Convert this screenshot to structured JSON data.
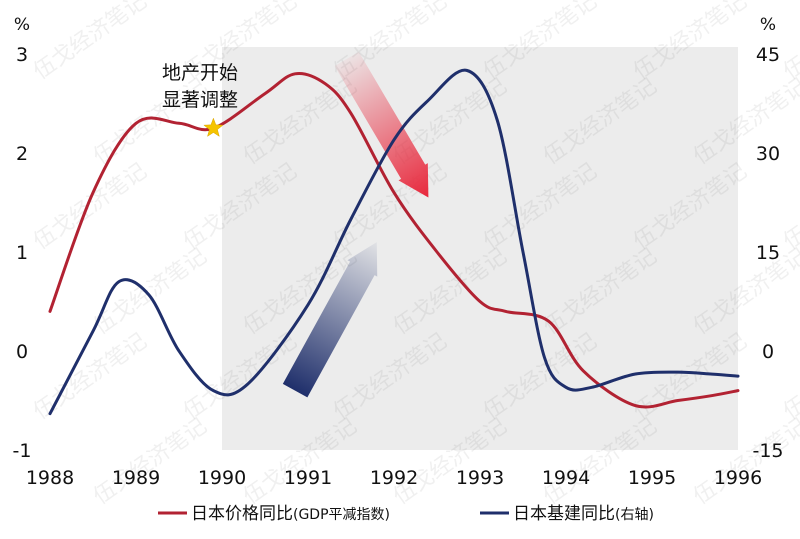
{
  "chart_data": {
    "type": "line",
    "title": "",
    "x_categories": [
      "1988",
      "1989",
      "1990",
      "1991",
      "1992",
      "1993",
      "1994",
      "1995",
      "1996"
    ],
    "left_axis": {
      "unit": "%",
      "ylim": [
        -1,
        3
      ],
      "ticks": [
        "3",
        "2",
        "1",
        "0",
        "-1"
      ],
      "tick_values": [
        3,
        2,
        1,
        0,
        -1
      ]
    },
    "right_axis": {
      "unit": "%",
      "ylim": [
        -15,
        45
      ],
      "ticks": [
        "45",
        "30",
        "15",
        "0",
        "-15"
      ],
      "tick_values": [
        45,
        30,
        15,
        0,
        -15
      ]
    },
    "shaded_region": {
      "x_start": 1990,
      "x_end": 1996
    },
    "annotation": {
      "line1": "地产开始",
      "line2": "显著调整",
      "x": 1989.9,
      "y": 2.25,
      "marker": "star-icon",
      "marker_color": "#f5c400"
    },
    "series": [
      {
        "name": "日本价格同比",
        "legend_note": "(GDP平减指数)",
        "axis": "left",
        "color": "#b22232",
        "points": [
          [
            1988,
            0.4
          ],
          [
            1988.5,
            1.6
          ],
          [
            1989,
            2.3
          ],
          [
            1989.5,
            2.3
          ],
          [
            1989.9,
            2.25
          ],
          [
            1990.5,
            2.6
          ],
          [
            1990.85,
            2.8
          ],
          [
            1991.2,
            2.7
          ],
          [
            1991.5,
            2.4
          ],
          [
            1992,
            1.6
          ],
          [
            1992.5,
            1.0
          ],
          [
            1993,
            0.5
          ],
          [
            1993.3,
            0.4
          ],
          [
            1993.8,
            0.3
          ],
          [
            1994.2,
            -0.2
          ],
          [
            1994.8,
            -0.55
          ],
          [
            1995.3,
            -0.5
          ],
          [
            1995.7,
            -0.45
          ],
          [
            1996,
            -0.4
          ]
        ]
      },
      {
        "name": "日本基建同比",
        "legend_note": "(右轴)",
        "axis": "right",
        "color": "#1f2f6b",
        "points": [
          [
            1988,
            -9.5
          ],
          [
            1988.5,
            3
          ],
          [
            1988.8,
            10.5
          ],
          [
            1989.15,
            8.5
          ],
          [
            1989.5,
            0
          ],
          [
            1989.9,
            -6
          ],
          [
            1990.3,
            -5
          ],
          [
            1991,
            7
          ],
          [
            1991.5,
            20
          ],
          [
            1992,
            32
          ],
          [
            1992.4,
            38
          ],
          [
            1992.85,
            42.5
          ],
          [
            1993.2,
            35
          ],
          [
            1993.5,
            15
          ],
          [
            1993.75,
            -1
          ],
          [
            1994,
            -5.5
          ],
          [
            1994.3,
            -5.5
          ],
          [
            1994.8,
            -3.5
          ],
          [
            1995.3,
            -3.2
          ],
          [
            1995.7,
            -3.5
          ],
          [
            1996,
            -3.8
          ]
        ]
      }
    ],
    "arrows": [
      {
        "color": "#e8283c",
        "from": [
          1991.45,
          2.95
        ],
        "to": [
          1992.4,
          1.55
        ]
      },
      {
        "color": "#1f2f6b",
        "from": [
          1990.85,
          -0.4
        ],
        "to": [
          1991.8,
          1.1
        ]
      }
    ],
    "legend_position": "bottom",
    "watermark_text": "伍戈经济笔记"
  }
}
